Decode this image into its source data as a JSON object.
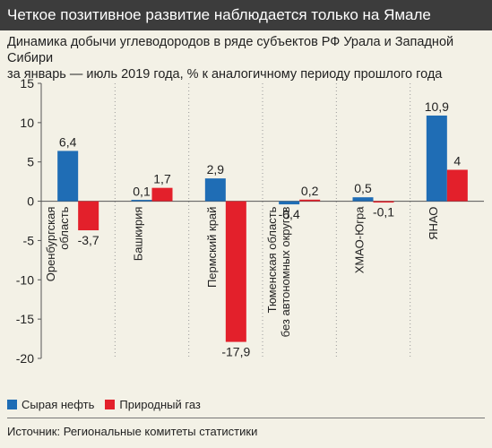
{
  "header": {
    "title": "Четкое позитивное развитие наблюдается только на Ямале"
  },
  "subtitle": {
    "line1": "Динамика добычи углеводородов в ряде субъектов РФ Урала и Западной Сибири",
    "line2": "за январь — июль 2019 года, % к аналогичному периоду прошлого года"
  },
  "colors": {
    "oil": "#1f6db5",
    "gas": "#e3202b"
  },
  "chart_data": {
    "type": "bar",
    "categories": [
      "Оренбургская область",
      "Башкирия",
      "Пермский край",
      "Тюменская область без автономных округов",
      "ХМАО-Югра",
      "ЯНАО"
    ],
    "category_lines": [
      [
        "Оренбургская",
        "область"
      ],
      [
        "Башкирия"
      ],
      [
        "Пермский край"
      ],
      [
        "Тюменская область",
        "без автономных округов"
      ],
      [
        "ХМАО-Югра"
      ],
      [
        "ЯНАО"
      ]
    ],
    "series": [
      {
        "name": "Сырая нефть",
        "values": [
          6.4,
          0.1,
          2.9,
          -0.4,
          0.5,
          10.9
        ],
        "labels": [
          "6,4",
          "0,1",
          "2,9",
          "-0,4",
          "0,5",
          "10,9"
        ]
      },
      {
        "name": "Природный газ",
        "values": [
          -3.7,
          1.7,
          -17.9,
          0.2,
          -0.1,
          4
        ],
        "labels": [
          "-3,7",
          "1,7",
          "-17,9",
          "0,2",
          "-0,1",
          "4"
        ]
      }
    ],
    "ylim": [
      -20,
      15
    ],
    "yticks": [
      15,
      10,
      5,
      0,
      -5,
      -10,
      -15,
      -20
    ],
    "grid": false,
    "legend_position": "bottom-left"
  },
  "legend": {
    "oil_label": "Сырая нефть",
    "gas_label": "Природный газ"
  },
  "source": {
    "text": "Источник: Региональные комитеты статистики"
  }
}
